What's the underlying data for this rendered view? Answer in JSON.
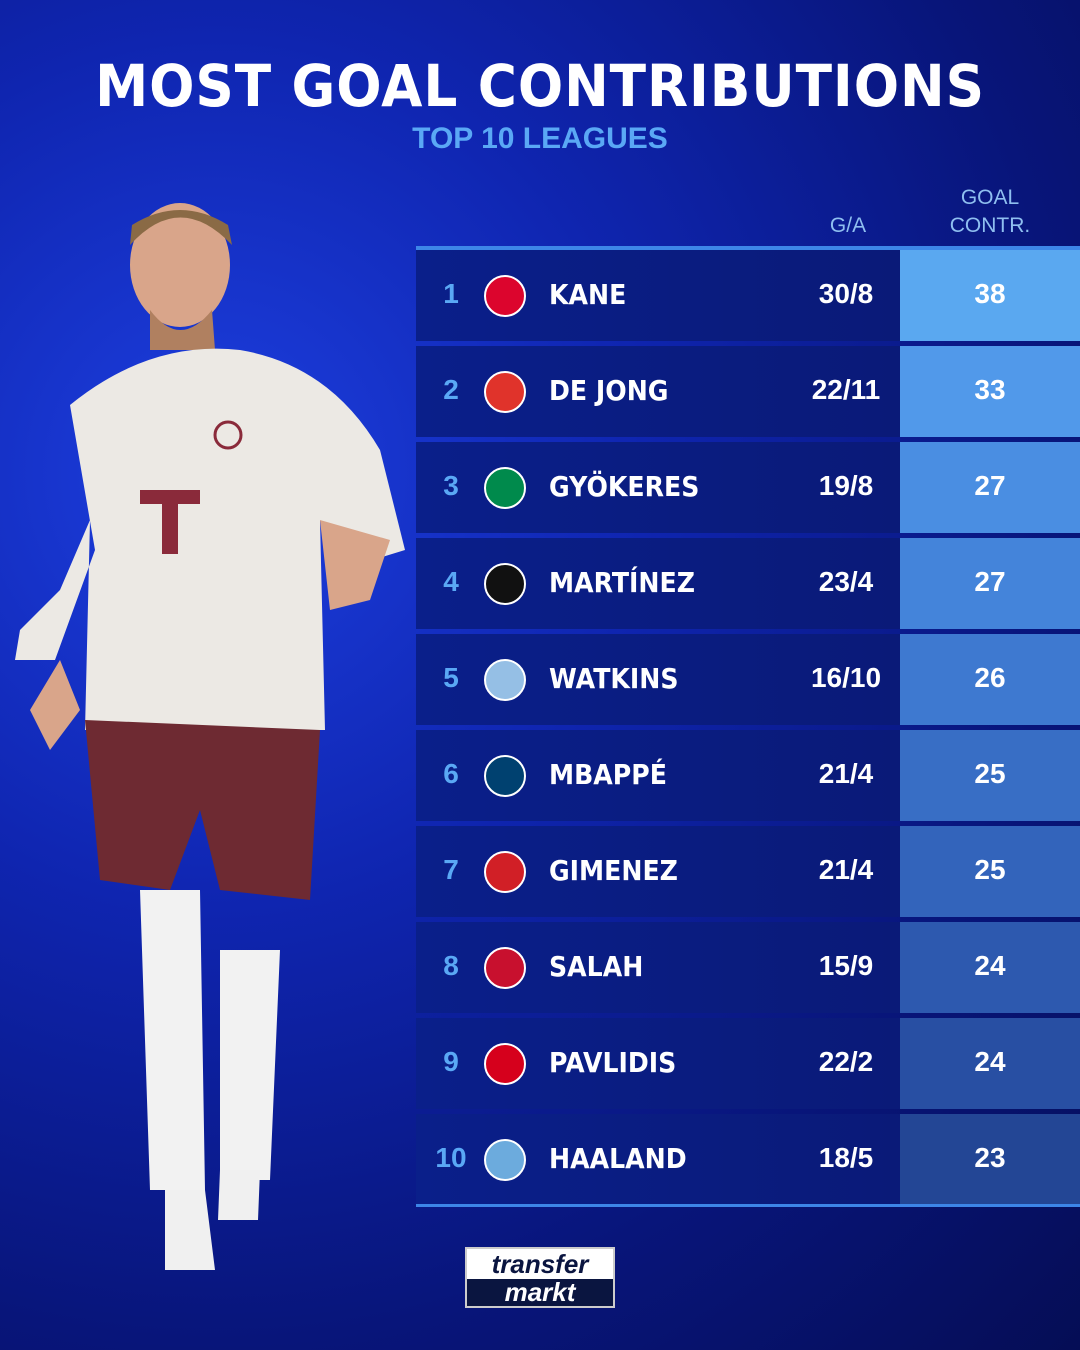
{
  "header": {
    "title": "MOST GOAL CONTRIBUTIONS",
    "subtitle": "TOP 10 LEAGUES"
  },
  "columns": {
    "ga": "G/A",
    "total_line1": "GOAL",
    "total_line2": "CONTR."
  },
  "rows": [
    {
      "rank": "1",
      "club": "bayern-munich",
      "badge_color": "#dc052d",
      "name": "KANE",
      "ga": "30/8",
      "total": "38",
      "cell_color": "#5aa8f0"
    },
    {
      "rank": "2",
      "club": "psv",
      "badge_color": "#e0332b",
      "name": "DE JONG",
      "ga": "22/11",
      "total": "33",
      "cell_color": "#5199ea"
    },
    {
      "rank": "3",
      "club": "sporting-cp",
      "badge_color": "#008a4c",
      "name": "GYÖKERES",
      "ga": "19/8",
      "total": "27",
      "cell_color": "#4a8ee2"
    },
    {
      "rank": "4",
      "club": "inter",
      "badge_color": "#111111",
      "name": "MARTÍNEZ",
      "ga": "23/4",
      "total": "27",
      "cell_color": "#4484da"
    },
    {
      "rank": "5",
      "club": "aston-villa",
      "badge_color": "#95bfe5",
      "name": "WATKINS",
      "ga": "16/10",
      "total": "26",
      "cell_color": "#3e79d0"
    },
    {
      "rank": "6",
      "club": "psg",
      "badge_color": "#004170",
      "name": "MBAPPÉ",
      "ga": "21/4",
      "total": "25",
      "cell_color": "#386ec5"
    },
    {
      "rank": "7",
      "club": "feyenoord",
      "badge_color": "#d11f26",
      "name": "GIMENEZ",
      "ga": "21/4",
      "total": "25",
      "cell_color": "#3364bb"
    },
    {
      "rank": "8",
      "club": "liverpool",
      "badge_color": "#c8102e",
      "name": "SALAH",
      "ga": "15/9",
      "total": "24",
      "cell_color": "#2d59af"
    },
    {
      "rank": "9",
      "club": "az-alkmaar",
      "badge_color": "#d6001c",
      "name": "PAVLIDIS",
      "ga": "22/2",
      "total": "24",
      "cell_color": "#284fa3"
    },
    {
      "rank": "10",
      "club": "manchester-city",
      "badge_color": "#6cabdd",
      "name": "HAALAND",
      "ga": "18/5",
      "total": "23",
      "cell_color": "#234695"
    }
  ],
  "logo": {
    "line1": "transfer",
    "line2": "markt"
  }
}
